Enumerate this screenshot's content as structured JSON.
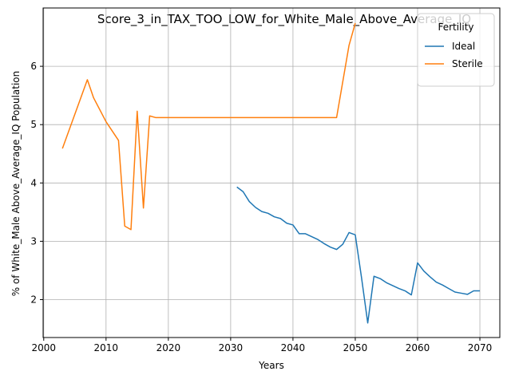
{
  "chart_data": {
    "type": "line",
    "title": "Score_3_in_TAX_TOO_LOW_for_White_Male_Above_Average_IQ",
    "xlabel": "Years",
    "ylabel": "% of White_Male Above_Average_IQ Population",
    "xlim": [
      1999.9,
      2073.2
    ],
    "ylim": [
      1.35,
      7.0
    ],
    "xticks": [
      2000,
      2010,
      2020,
      2030,
      2040,
      2050,
      2060,
      2070
    ],
    "yticks": [
      2,
      3,
      4,
      5,
      6
    ],
    "grid": true,
    "legend": {
      "title": "Fertility",
      "placement": "top-right"
    },
    "series": [
      {
        "name": "Ideal",
        "color": "#1f77b4",
        "x": [
          2031,
          2032,
          2033,
          2034,
          2035,
          2036,
          2037,
          2038,
          2039,
          2040,
          2041,
          2042,
          2043,
          2044,
          2045,
          2046,
          2047,
          2048,
          2049,
          2050,
          2051,
          2052,
          2053,
          2054,
          2055,
          2056,
          2057,
          2058,
          2059,
          2060,
          2061,
          2062,
          2063,
          2064,
          2065,
          2066,
          2067,
          2068,
          2069,
          2070
        ],
        "y": [
          3.93,
          3.85,
          3.68,
          3.58,
          3.51,
          3.48,
          3.42,
          3.39,
          3.31,
          3.28,
          3.13,
          3.13,
          3.08,
          3.03,
          2.96,
          2.9,
          2.86,
          2.95,
          3.15,
          3.11,
          2.38,
          1.6,
          2.4,
          2.36,
          2.29,
          2.24,
          2.19,
          2.15,
          2.08,
          2.63,
          2.49,
          2.39,
          2.3,
          2.25,
          2.19,
          2.13,
          2.11,
          2.09,
          2.15,
          2.15
        ]
      },
      {
        "name": "Sterile",
        "color": "#ff7f0e",
        "x": [
          2003,
          2007,
          2008,
          2010,
          2012,
          2013,
          2014,
          2015,
          2016,
          2017,
          2018,
          2020,
          2030,
          2040,
          2047,
          2049,
          2050
        ],
        "y": [
          4.59,
          5.77,
          5.46,
          5.05,
          4.73,
          3.26,
          3.2,
          5.23,
          3.57,
          5.15,
          5.12,
          5.12,
          5.12,
          5.12,
          5.12,
          6.36,
          6.74
        ]
      }
    ]
  }
}
